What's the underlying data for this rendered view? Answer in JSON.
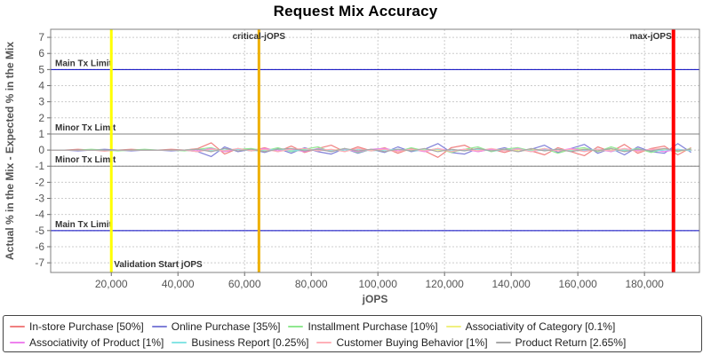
{
  "chart_data": {
    "type": "line",
    "title": "Request Mix Accuracy",
    "xlabel": "jOPS",
    "ylabel": "Actual % in the Mix - Expected % in the Mix",
    "xlim": [
      1800,
      196500
    ],
    "ylim": [
      -7.6,
      7.5
    ],
    "x_ticks": [
      20000,
      40000,
      60000,
      80000,
      100000,
      120000,
      140000,
      160000,
      180000
    ],
    "y_ticks": [
      -7,
      -6,
      -5,
      -4,
      -3,
      -2,
      -1,
      0,
      1,
      2,
      3,
      4,
      5,
      6,
      7
    ],
    "grid": "dashed",
    "grid_color": "#cccccc",
    "plot_border_color": "#808080",
    "legend_position": "bottom",
    "x_start": 2000,
    "x_step": 4000,
    "limit_lines": [
      {
        "label": "Main Tx Limit",
        "y": 5,
        "color": "#0000C0"
      },
      {
        "label": "Main Tx Limit",
        "y": -5,
        "color": "#0000C0"
      },
      {
        "label": "Minor Tx Limit",
        "y": 1,
        "color": "#808080"
      },
      {
        "label": "Minor Tx Limit",
        "y": -1,
        "color": "#808080"
      }
    ],
    "markers": [
      {
        "label": "Validation Start jOPS",
        "x": 20000,
        "color": "#FFFF00",
        "width": 3,
        "layer": "below",
        "label_pos": "bottom-right"
      },
      {
        "label": "critical-jOPS",
        "x": 64300,
        "color": "#EEB000",
        "width": 3,
        "layer": "above",
        "label_pos": "top-center"
      },
      {
        "label": "max-jOPS",
        "x": 188700,
        "color": "#FF0000",
        "width": 4,
        "layer": "above",
        "label_pos": "top-left"
      }
    ],
    "series": [
      {
        "name": "in-store-purchase",
        "label": "In-store Purchase [50%]",
        "color": "#F08080",
        "values": [
          0,
          0,
          0.05,
          0,
          -0.05,
          0,
          0.05,
          0,
          0,
          0.05,
          0,
          0.1,
          0.45,
          -0.25,
          0.1,
          -0.05,
          0.15,
          -0.1,
          0.25,
          -0.15,
          0.1,
          0.3,
          -0.1,
          0.2,
          -0.05,
          0.15,
          -0.2,
          0.1,
          -0.05,
          -0.45,
          0.15,
          0.3,
          -0.1,
          0.05,
          -0.15,
          0.1,
          -0.05,
          -0.3,
          0.15,
          -0.1,
          -0.35,
          0.2,
          -0.1,
          0.35,
          -0.2,
          0.1,
          0.25,
          -0.3,
          0.15
        ]
      },
      {
        "name": "online-purchase",
        "label": "Online Purchase [35%]",
        "color": "#8080D8",
        "values": [
          0,
          0,
          -0.05,
          0,
          0.05,
          0,
          -0.05,
          0,
          0,
          -0.05,
          0,
          -0.1,
          -0.4,
          0.2,
          -0.1,
          0.05,
          -0.15,
          0.1,
          -0.2,
          0.15,
          -0.1,
          -0.25,
          0.1,
          -0.2,
          0.05,
          -0.15,
          0.2,
          -0.1,
          0.05,
          0.4,
          -0.15,
          -0.25,
          0.1,
          -0.05,
          0.15,
          -0.1,
          0.05,
          0.3,
          -0.15,
          0.1,
          0.35,
          -0.2,
          0.1,
          -0.3,
          0.2,
          -0.1,
          -0.2,
          0.4,
          -0.15
        ]
      },
      {
        "name": "installment-purchase",
        "label": "Installment Purchase [10%]",
        "color": "#90E890",
        "values": [
          0,
          0,
          0,
          0.05,
          0,
          -0.05,
          0,
          0.05,
          0,
          0,
          -0.05,
          0.05,
          0.15,
          -0.1,
          0.05,
          0.1,
          -0.05,
          0.15,
          -0.1,
          0.05,
          0.2,
          -0.1,
          0.1,
          -0.15,
          0.05,
          0.1,
          -0.1,
          0.15,
          -0.05,
          0.1,
          -0.15,
          0.05,
          0.2,
          -0.1,
          0.05,
          0.15,
          -0.05,
          0.1,
          -0.2,
          0.05,
          0.15,
          -0.1,
          0.2,
          -0.05,
          0.1,
          -0.15,
          0.05,
          -0.1,
          0.1
        ]
      },
      {
        "name": "associativity-of-category",
        "label": "Associativity of Category [0.1%]",
        "color": "#F0F080",
        "values": [
          0,
          0,
          0,
          0,
          0,
          0,
          0,
          0,
          0,
          0,
          0,
          0.05,
          -0.05,
          0,
          0.05,
          0,
          -0.05,
          0.05,
          0,
          -0.05,
          0.05,
          0,
          0.05,
          -0.05,
          0,
          0.05,
          -0.05,
          0,
          0.05,
          0,
          -0.05,
          0.05,
          -0.05,
          0,
          0.05,
          -0.05,
          0,
          0.05,
          -0.05,
          0,
          0.05,
          -0.05,
          0,
          0.05,
          -0.05,
          0,
          0.05,
          -0.05,
          0
        ]
      },
      {
        "name": "associativity-of-product",
        "label": "Associativity of Product [1%]",
        "color": "#EE82EE",
        "values": [
          0,
          0,
          0,
          0,
          0,
          0,
          0,
          0,
          0,
          0,
          0,
          -0.05,
          0.1,
          -0.1,
          0.05,
          -0.05,
          0.1,
          -0.05,
          0.05,
          -0.1,
          0.1,
          -0.05,
          0.05,
          -0.1,
          0.05,
          0.1,
          -0.05,
          0.05,
          -0.1,
          0.1,
          -0.05,
          0.05,
          -0.1,
          0.05,
          -0.05,
          0.1,
          -0.1,
          0.05,
          -0.05,
          0.1,
          -0.05,
          0.05,
          -0.1,
          0.1,
          -0.05,
          0.05,
          -0.1,
          0.05,
          -0.05
        ]
      },
      {
        "name": "business-report",
        "label": "Business Report [0.25%]",
        "color": "#85E4E4",
        "values": [
          0,
          0,
          0,
          0,
          0,
          0,
          0,
          0,
          0,
          0,
          0,
          0.05,
          -0.05,
          0,
          0.05,
          -0.05,
          0,
          0.05,
          -0.05,
          0,
          0.05,
          -0.05,
          0,
          0.05,
          -0.05,
          0,
          0.05,
          -0.05,
          0,
          0.05,
          -0.05,
          0,
          0.05,
          -0.05,
          0,
          0.05,
          -0.05,
          0,
          0.05,
          -0.05,
          0,
          0.05,
          -0.05,
          0,
          0.05,
          -0.05,
          0,
          0.05,
          -0.05
        ]
      },
      {
        "name": "customer-buying-behavior",
        "label": "Customer Buying Behavior [1%]",
        "color": "#FFB0B8",
        "values": [
          0,
          0,
          0,
          0,
          0,
          0,
          0,
          0,
          0,
          0,
          0,
          -0.1,
          0.05,
          -0.05,
          0.1,
          -0.05,
          0.05,
          -0.1,
          0.05,
          0.1,
          -0.05,
          0.05,
          -0.1,
          0.1,
          -0.05,
          0.05,
          -0.1,
          0.05,
          -0.05,
          0.1,
          -0.1,
          0.05,
          -0.05,
          0.1,
          -0.05,
          0.05,
          -0.1,
          0.1,
          -0.05,
          0.05,
          -0.1,
          0.05,
          -0.05,
          0.1,
          -0.1,
          0.05,
          0.1,
          -0.05,
          0.05
        ]
      },
      {
        "name": "product-return",
        "label": "Product Return [2.65%]",
        "color": "#A8A8A8",
        "values": [
          0,
          0,
          0,
          0,
          0,
          0,
          0,
          0,
          0,
          0,
          0,
          0.05,
          -0.1,
          0.1,
          -0.05,
          0.05,
          -0.1,
          0.05,
          0.1,
          -0.05,
          0.05,
          -0.1,
          0.1,
          -0.05,
          0.05,
          -0.1,
          0.05,
          -0.05,
          0.1,
          -0.1,
          0.05,
          -0.05,
          0.1,
          -0.05,
          0.05,
          -0.1,
          0.1,
          -0.05,
          0.05,
          -0.1,
          0.05,
          -0.05,
          0.1,
          -0.1,
          0.05,
          -0.05,
          0.1,
          -0.05,
          0.05
        ]
      }
    ]
  }
}
